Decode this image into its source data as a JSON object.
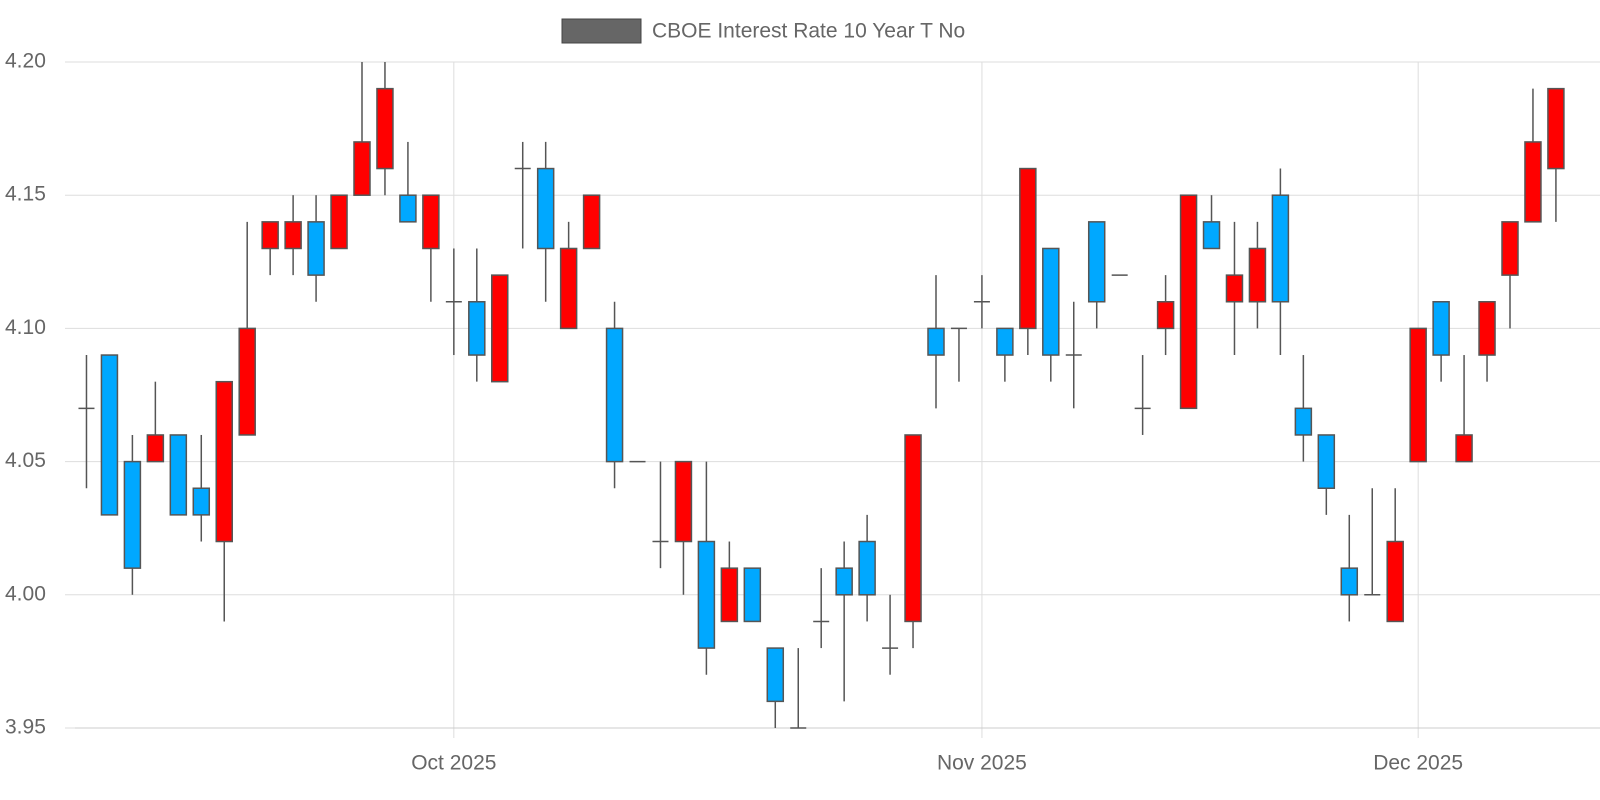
{
  "chart_data": {
    "type": "candlestick",
    "categories": [
      null,
      null,
      null,
      null,
      null,
      null,
      null,
      null,
      null,
      null,
      null,
      null,
      null,
      null,
      null,
      null,
      "Oct 2025",
      null,
      null,
      null,
      null,
      null,
      null,
      null,
      null,
      null,
      null,
      null,
      null,
      null,
      null,
      null,
      null,
      null,
      null,
      null,
      null,
      null,
      null,
      "Nov 2025",
      null,
      null,
      null,
      null,
      null,
      null,
      null,
      null,
      null,
      null,
      null,
      null,
      null,
      null,
      null,
      null,
      null,
      null,
      "Dec 2025",
      null,
      null,
      null,
      null,
      null,
      null
    ],
    "series": [
      {
        "name": "CBOE Interest Rate 10 Year T No",
        "color": "#666666",
        "open": [
          4.07,
          4.09,
          4.05,
          4.05,
          4.06,
          4.04,
          4.02,
          4.06,
          4.13,
          4.13,
          4.14,
          4.13,
          4.15,
          4.16,
          4.15,
          4.13,
          4.11,
          4.11,
          4.08,
          4.16,
          4.16,
          4.1,
          4.13,
          4.1,
          4.05,
          4.02,
          4.02,
          4.02,
          3.99,
          4.01,
          3.98,
          3.95,
          3.99,
          4.01,
          4.02,
          3.98,
          3.99,
          4.1,
          4.1,
          4.11,
          4.1,
          4.1,
          4.13,
          4.09,
          4.14,
          4.12,
          4.07,
          4.1,
          4.07,
          4.14,
          4.11,
          4.11,
          4.15,
          4.07,
          4.06,
          4.01,
          4.0,
          3.99,
          4.05,
          4.11,
          4.05,
          4.09,
          4.12,
          4.14,
          4.16
        ],
        "high": [
          4.09,
          4.09,
          4.06,
          4.08,
          4.06,
          4.06,
          4.08,
          4.14,
          4.14,
          4.15,
          4.15,
          4.15,
          4.2,
          4.2,
          4.17,
          4.15,
          4.13,
          4.13,
          4.12,
          4.17,
          4.17,
          4.14,
          4.15,
          4.11,
          4.05,
          4.05,
          4.05,
          4.05,
          4.02,
          4.01,
          3.98,
          3.98,
          4.01,
          4.02,
          4.03,
          4.0,
          4.06,
          4.12,
          4.1,
          4.12,
          4.1,
          4.16,
          4.13,
          4.11,
          4.14,
          4.12,
          4.09,
          4.12,
          4.15,
          4.15,
          4.14,
          4.14,
          4.16,
          4.09,
          4.06,
          4.03,
          4.04,
          4.04,
          4.1,
          4.11,
          4.09,
          4.11,
          4.14,
          4.19,
          4.19
        ],
        "low": [
          4.04,
          4.03,
          4.0,
          4.05,
          4.03,
          4.02,
          3.99,
          4.06,
          4.12,
          4.12,
          4.11,
          4.13,
          4.15,
          4.15,
          4.14,
          4.11,
          4.09,
          4.08,
          4.08,
          4.13,
          4.11,
          4.1,
          4.13,
          4.04,
          4.05,
          4.01,
          4.0,
          3.97,
          3.99,
          3.99,
          3.95,
          3.95,
          3.98,
          3.96,
          3.99,
          3.97,
          3.98,
          4.07,
          4.08,
          4.1,
          4.08,
          4.09,
          4.08,
          4.07,
          4.1,
          4.12,
          4.06,
          4.09,
          4.07,
          4.13,
          4.09,
          4.1,
          4.09,
          4.05,
          4.03,
          3.99,
          4.0,
          3.99,
          4.05,
          4.08,
          4.05,
          4.08,
          4.1,
          4.14,
          4.14
        ],
        "close": [
          4.07,
          4.03,
          4.01,
          4.06,
          4.03,
          4.03,
          4.08,
          4.1,
          4.14,
          4.14,
          4.12,
          4.15,
          4.17,
          4.19,
          4.14,
          4.15,
          4.11,
          4.09,
          4.12,
          4.16,
          4.13,
          4.13,
          4.15,
          4.05,
          4.05,
          4.02,
          4.05,
          3.98,
          4.01,
          3.99,
          3.96,
          3.95,
          3.99,
          4.0,
          4.0,
          3.98,
          4.06,
          4.09,
          4.1,
          4.11,
          4.09,
          4.16,
          4.09,
          4.09,
          4.11,
          4.12,
          4.07,
          4.11,
          4.15,
          4.13,
          4.12,
          4.13,
          4.11,
          4.06,
          4.04,
          4.0,
          4.0,
          4.02,
          4.1,
          4.09,
          4.06,
          4.11,
          4.14,
          4.17,
          4.19
        ]
      }
    ],
    "up_color": "#ff0000",
    "down_color": "#00a8ff",
    "ylim": [
      3.95,
      4.2
    ],
    "yticks": [
      3.95,
      {
        "value": 4.0,
        "label": "4.00"
      },
      4.05,
      {
        "value": 4.1,
        "label": "4.10"
      },
      4.15,
      {
        "value": 4.2,
        "label": "4.20"
      }
    ],
    "grid": true
  }
}
